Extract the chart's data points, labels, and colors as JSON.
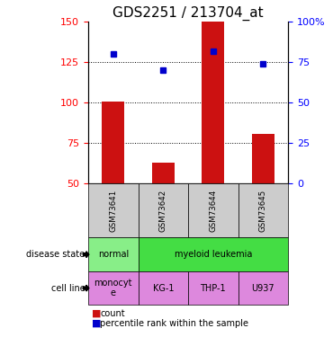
{
  "title": "GDS2251 / 213704_at",
  "samples": [
    "GSM73641",
    "GSM73642",
    "GSM73644",
    "GSM73645"
  ],
  "counts": [
    101,
    63,
    150,
    81
  ],
  "percentiles": [
    80,
    70,
    82,
    74
  ],
  "ylim_left": [
    50,
    150
  ],
  "ylim_right": [
    0,
    100
  ],
  "yticks_left": [
    50,
    75,
    100,
    125,
    150
  ],
  "yticks_right": [
    0,
    25,
    50,
    75,
    100
  ],
  "ytick_labels_right": [
    "0",
    "25",
    "50",
    "75",
    "100%"
  ],
  "bar_color": "#cc1111",
  "dot_color": "#0000cc",
  "disease_normal_color": "#88ee88",
  "disease_leukemia_color": "#44dd44",
  "cell_line_color_monocyte": "#dd88dd",
  "cell_line_color_rest": "#dd88dd",
  "sample_label_bg": "#cccccc",
  "title_fontsize": 11,
  "tick_fontsize": 8,
  "table_fontsize": 7,
  "legend_fontsize": 7
}
